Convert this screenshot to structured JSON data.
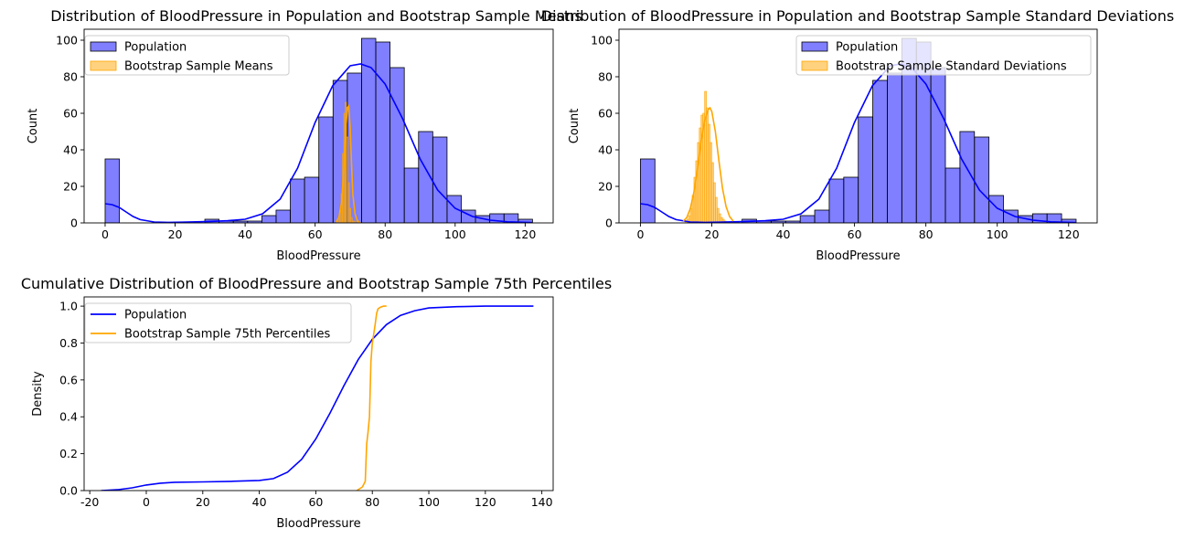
{
  "colors": {
    "population": "#0000ff",
    "bootstrap": "#ffa500",
    "axis": "#000000",
    "legend_border": "#cccccc"
  },
  "chart_data": [
    {
      "type": "histogram",
      "title": "Distribution of BloodPressure in Population and Bootstrap Sample Means",
      "xlabel": "BloodPressure",
      "ylabel": "Count",
      "xlim": [
        -6,
        128
      ],
      "ylim": [
        0,
        106
      ],
      "xticks": [
        0,
        20,
        40,
        60,
        80,
        100,
        120
      ],
      "yticks": [
        0,
        20,
        40,
        60,
        80,
        100
      ],
      "grid": false,
      "legend_position": "top-left",
      "legend": [
        "Population",
        "Bootstrap Sample Means"
      ],
      "population_bins": {
        "start": 0,
        "width": 4.07,
        "counts": [
          35,
          0,
          0,
          0,
          0,
          0,
          0,
          2,
          1,
          1,
          1,
          4,
          7,
          24,
          25,
          58,
          78,
          82,
          101,
          99,
          85,
          30,
          50,
          47,
          15,
          7,
          4,
          5,
          5,
          2
        ]
      },
      "population_kde": {
        "x": [
          0,
          2,
          4,
          6,
          8,
          10,
          14,
          18,
          22,
          26,
          30,
          35,
          40,
          45,
          50,
          55,
          60,
          65,
          70,
          73,
          76,
          80,
          85,
          90,
          95,
          100,
          105,
          110,
          115,
          122
        ],
        "y": [
          10.5,
          10,
          8.5,
          6,
          3.5,
          1.8,
          0.5,
          0.3,
          0.4,
          0.6,
          0.8,
          1.2,
          2,
          5,
          13,
          30,
          55,
          75,
          86,
          87,
          85,
          76,
          57,
          35,
          18,
          8,
          3.5,
          1.5,
          0.6,
          0.2
        ]
      },
      "bootstrap_bins": {
        "start": 66.2,
        "width": 0.4,
        "counts": [
          1,
          3,
          7,
          16,
          38,
          60,
          66,
          47,
          22,
          8,
          3,
          1,
          1,
          0,
          1
        ]
      },
      "bootstrap_kde": {
        "x": [
          66,
          66.8,
          67.6,
          68.2,
          68.8,
          69.2,
          69.6,
          70,
          70.4,
          70.8,
          71.4,
          72,
          72.6,
          73
        ],
        "y": [
          0.5,
          3,
          12,
          30,
          52,
          63,
          64,
          52,
          32,
          15,
          5,
          1.5,
          0.3,
          0
        ]
      }
    },
    {
      "type": "histogram",
      "title": "Distribution of BloodPressure in Population and Bootstrap Sample Standard Deviations",
      "xlabel": "BloodPressure",
      "ylabel": "Count",
      "xlim": [
        -6,
        128
      ],
      "ylim": [
        0,
        106
      ],
      "xticks": [
        0,
        20,
        40,
        60,
        80,
        100,
        120
      ],
      "yticks": [
        0,
        20,
        40,
        60,
        80,
        100
      ],
      "grid": false,
      "legend_position": "top-right",
      "legend": [
        "Population",
        "Bootstrap Sample Standard Deviations"
      ],
      "population_bins": {
        "start": 0,
        "width": 4.07,
        "counts": [
          35,
          0,
          0,
          0,
          0,
          0,
          0,
          2,
          1,
          1,
          1,
          4,
          7,
          24,
          25,
          58,
          78,
          82,
          101,
          99,
          85,
          30,
          50,
          47,
          15,
          7,
          4,
          5,
          5,
          2
        ]
      },
      "population_kde": {
        "x": [
          0,
          2,
          4,
          6,
          8,
          10,
          14,
          18,
          22,
          26,
          30,
          35,
          40,
          45,
          50,
          55,
          60,
          65,
          70,
          73,
          76,
          80,
          85,
          90,
          95,
          100,
          105,
          110,
          115,
          122
        ],
        "y": [
          10.5,
          10,
          8.5,
          6,
          3.5,
          1.8,
          0.5,
          0.3,
          0.4,
          0.6,
          0.8,
          1.2,
          2,
          5,
          13,
          30,
          55,
          75,
          86,
          87,
          85,
          76,
          57,
          35,
          18,
          8,
          3.5,
          1.5,
          0.6,
          0.2
        ]
      },
      "bootstrap_bins": {
        "start": 12.5,
        "width": 0.5,
        "counts": [
          1,
          2,
          4,
          8,
          15,
          25,
          34,
          44,
          52,
          59,
          60,
          72,
          63,
          54,
          44,
          33,
          22,
          14,
          8,
          5,
          3,
          2,
          1
        ]
      },
      "bootstrap_kde": {
        "x": [
          12,
          13,
          14,
          15,
          16,
          17,
          18,
          19,
          19.5,
          20,
          21,
          22,
          23,
          24,
          25,
          26
        ],
        "y": [
          1,
          3,
          8,
          17,
          30,
          45,
          56,
          62,
          63,
          61,
          50,
          34,
          19,
          9,
          3.5,
          1
        ]
      }
    },
    {
      "type": "line",
      "title": "Cumulative Distribution of BloodPressure and Bootstrap Sample 75th Percentiles",
      "xlabel": "BloodPressure",
      "ylabel": "Density",
      "xlim": [
        -22,
        144
      ],
      "ylim": [
        0,
        1.05
      ],
      "xticks": [
        -20,
        0,
        20,
        40,
        60,
        80,
        100,
        120,
        140
      ],
      "yticks": [
        0.0,
        0.2,
        0.4,
        0.6,
        0.8,
        1.0
      ],
      "ytick_labels": [
        "0.0",
        "0.2",
        "0.4",
        "0.6",
        "0.8",
        "1.0"
      ],
      "grid": false,
      "legend_position": "top-left",
      "series": [
        {
          "name": "Population",
          "x": [
            -16,
            -10,
            -5,
            0,
            5,
            10,
            20,
            30,
            40,
            45,
            50,
            55,
            60,
            65,
            70,
            75,
            80,
            85,
            90,
            95,
            100,
            110,
            120,
            130,
            137
          ],
          "y": [
            0.0,
            0.005,
            0.015,
            0.03,
            0.04,
            0.045,
            0.047,
            0.05,
            0.055,
            0.065,
            0.1,
            0.17,
            0.28,
            0.42,
            0.57,
            0.71,
            0.82,
            0.9,
            0.95,
            0.975,
            0.99,
            0.997,
            1.0,
            1.0,
            1.0
          ]
        },
        {
          "name": "Bootstrap Sample 75th Percentiles",
          "x": [
            74.5,
            76.5,
            77.5,
            78,
            78.5,
            79,
            79.5,
            80,
            80.5,
            81,
            81.5,
            82,
            82.5,
            83,
            84,
            85
          ],
          "y": [
            0.0,
            0.02,
            0.05,
            0.25,
            0.32,
            0.4,
            0.7,
            0.8,
            0.85,
            0.9,
            0.96,
            0.985,
            0.99,
            0.995,
            1.0,
            1.0
          ]
        }
      ]
    }
  ]
}
